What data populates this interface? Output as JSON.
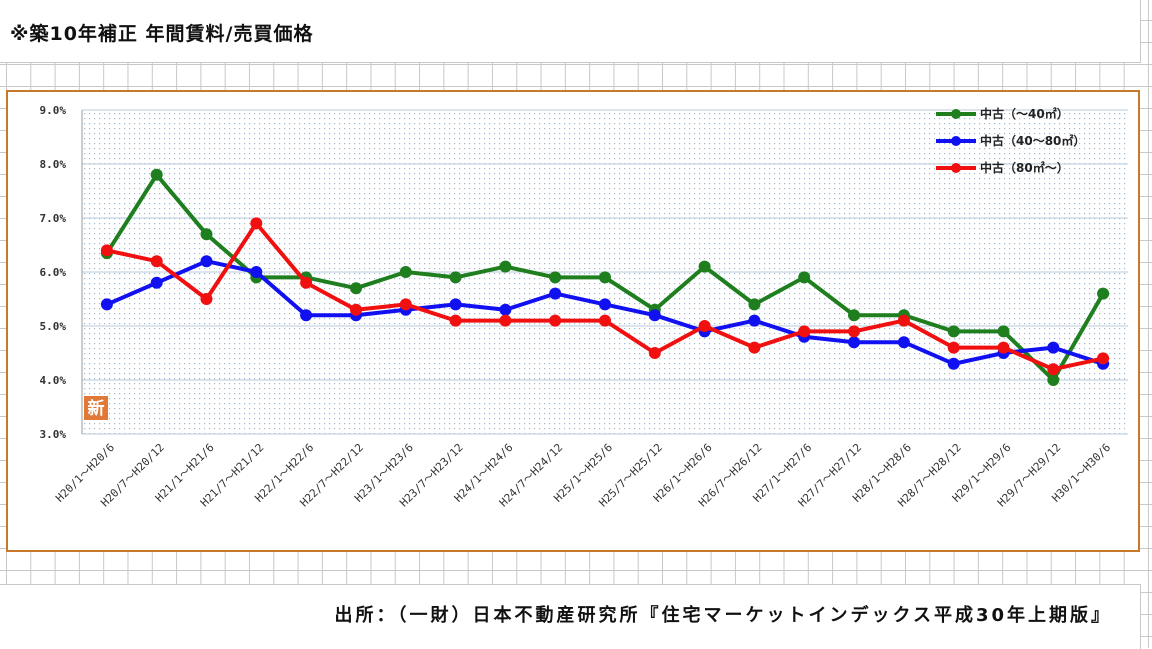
{
  "page_title": "※築10年補正  年間賃料/売買価格",
  "source_note": "出所：（一財）日本不動産研究所『住宅マーケットインデックス平成30年上期版』",
  "new_badge": "新",
  "colors": {
    "green": "#1f7f1f",
    "blue": "#1010f0",
    "red": "#f01010",
    "frame": "#c8782a",
    "grid": "#b8c8dc",
    "dots": "#9fb8d0",
    "badge": "#e07838"
  },
  "chart_data": {
    "type": "line",
    "categories": [
      "H20/1～H20/6",
      "H20/7～H20/12",
      "H21/1～H21/6",
      "H21/7～H21/12",
      "H22/1～H22/6",
      "H22/7～H22/12",
      "H23/1～H23/6",
      "H23/7～H23/12",
      "H24/1～H24/6",
      "H24/7～H24/12",
      "H25/1～H25/6",
      "H25/7～H25/12",
      "H26/1～H26/6",
      "H26/7～H26/12",
      "H27/1～H27/6",
      "H27/7～H27/12",
      "H28/1～H28/6",
      "H28/7～H28/12",
      "H29/1～H29/6",
      "H29/7～H29/12",
      "H30/1～H30/6"
    ],
    "series": [
      {
        "name": "中古（～40㎡）",
        "color": "#1f7f1f",
        "values": [
          6.35,
          7.8,
          6.7,
          5.9,
          5.9,
          5.7,
          6.0,
          5.9,
          6.1,
          5.9,
          5.9,
          5.3,
          6.1,
          5.4,
          5.9,
          5.2,
          5.2,
          4.9,
          4.9,
          4.0,
          5.6
        ]
      },
      {
        "name": "中古（40～80㎡）",
        "color": "#1010f0",
        "values": [
          5.4,
          5.8,
          6.2,
          6.0,
          5.2,
          5.2,
          5.3,
          5.4,
          5.3,
          5.6,
          5.4,
          5.2,
          4.9,
          5.1,
          4.8,
          4.7,
          4.7,
          4.3,
          4.5,
          4.6,
          4.3
        ]
      },
      {
        "name": "中古（80㎡～）",
        "color": "#f01010",
        "values": [
          6.4,
          6.2,
          5.5,
          6.9,
          5.8,
          5.3,
          5.4,
          5.1,
          5.1,
          5.1,
          5.1,
          4.5,
          5.0,
          4.6,
          4.9,
          4.9,
          5.1,
          4.6,
          4.6,
          4.2,
          4.4
        ]
      }
    ],
    "y_ticks": [
      "3.0%",
      "4.0%",
      "5.0%",
      "6.0%",
      "7.0%",
      "8.0%",
      "9.0%"
    ],
    "ylim": [
      3.0,
      9.0
    ],
    "grid": true,
    "legend_position": "top-right"
  }
}
